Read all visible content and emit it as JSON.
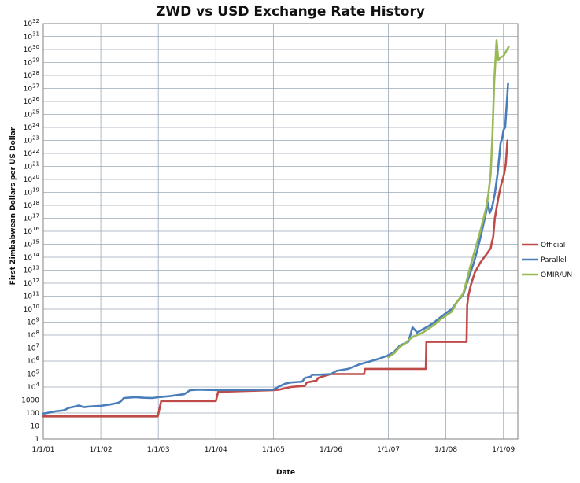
{
  "chart_data": {
    "type": "line",
    "title": "ZWD vs USD Exchange Rate History",
    "xlabel": "Date",
    "ylabel": "First Zimbabwean Dollars per US Dollar",
    "y_scale": "log",
    "y_ticks": [
      {
        "exp": 0,
        "label": "1"
      },
      {
        "exp": 1,
        "label": "10"
      },
      {
        "exp": 2,
        "label": "100"
      },
      {
        "exp": 3,
        "label": "1000"
      },
      {
        "exp": 4,
        "base": "10",
        "sup": "4"
      },
      {
        "exp": 5,
        "base": "10",
        "sup": "5"
      },
      {
        "exp": 6,
        "base": "10",
        "sup": "6"
      },
      {
        "exp": 7,
        "base": "10",
        "sup": "7"
      },
      {
        "exp": 8,
        "base": "10",
        "sup": "8"
      },
      {
        "exp": 9,
        "base": "10",
        "sup": "9"
      },
      {
        "exp": 10,
        "base": "10",
        "sup": "10"
      },
      {
        "exp": 11,
        "base": "10",
        "sup": "11"
      },
      {
        "exp": 12,
        "base": "10",
        "sup": "12"
      },
      {
        "exp": 13,
        "base": "10",
        "sup": "13"
      },
      {
        "exp": 14,
        "base": "10",
        "sup": "14"
      },
      {
        "exp": 15,
        "base": "10",
        "sup": "15"
      },
      {
        "exp": 16,
        "base": "10",
        "sup": "16"
      },
      {
        "exp": 17,
        "base": "10",
        "sup": "17"
      },
      {
        "exp": 18,
        "base": "10",
        "sup": "18"
      },
      {
        "exp": 19,
        "base": "10",
        "sup": "19"
      },
      {
        "exp": 20,
        "base": "10",
        "sup": "20"
      },
      {
        "exp": 21,
        "base": "10",
        "sup": "21"
      },
      {
        "exp": 22,
        "base": "10",
        "sup": "22"
      },
      {
        "exp": 23,
        "base": "10",
        "sup": "23"
      },
      {
        "exp": 24,
        "base": "10",
        "sup": "24"
      },
      {
        "exp": 25,
        "base": "10",
        "sup": "25"
      },
      {
        "exp": 26,
        "base": "10",
        "sup": "26"
      },
      {
        "exp": 27,
        "base": "10",
        "sup": "27"
      },
      {
        "exp": 28,
        "base": "10",
        "sup": "28"
      },
      {
        "exp": 29,
        "base": "10",
        "sup": "29"
      },
      {
        "exp": 30,
        "base": "10",
        "sup": "30"
      },
      {
        "exp": 31,
        "base": "10",
        "sup": "31"
      },
      {
        "exp": 32,
        "base": "10",
        "sup": "32"
      }
    ],
    "ylim_exp": [
      0,
      32
    ],
    "x_ticks": [
      {
        "value": 2001,
        "label": "1/1/01"
      },
      {
        "value": 2002,
        "label": "1/1/02"
      },
      {
        "value": 2003,
        "label": "1/1/03"
      },
      {
        "value": 2004,
        "label": "1/1/04"
      },
      {
        "value": 2005,
        "label": "1/1/05"
      },
      {
        "value": 2006,
        "label": "1/1/06"
      },
      {
        "value": 2007,
        "label": "1/1/07"
      },
      {
        "value": 2008,
        "label": "1/1/08"
      },
      {
        "value": 2009,
        "label": "1/1/09"
      }
    ],
    "xlim": [
      2001,
      2009.25
    ],
    "grid": true,
    "legend_position": "right",
    "series": [
      {
        "name": "Official",
        "color": "#be4b48",
        "points": [
          [
            2001.0,
            1.74
          ],
          [
            2002.0,
            1.74
          ],
          [
            2002.99,
            1.74
          ],
          [
            2003.05,
            2.92
          ],
          [
            2004.0,
            2.92
          ],
          [
            2004.04,
            3.63
          ],
          [
            2005.0,
            3.76
          ],
          [
            2005.1,
            3.8
          ],
          [
            2005.3,
            4.0
          ],
          [
            2005.55,
            4.1
          ],
          [
            2005.58,
            4.35
          ],
          [
            2005.75,
            4.5
          ],
          [
            2005.78,
            4.7
          ],
          [
            2005.92,
            4.9
          ],
          [
            2006.0,
            5.0
          ],
          [
            2006.58,
            5.0
          ],
          [
            2006.59,
            5.4
          ],
          [
            2007.0,
            5.4
          ],
          [
            2007.65,
            5.4
          ],
          [
            2007.66,
            7.48
          ],
          [
            2008.0,
            7.48
          ],
          [
            2008.36,
            7.48
          ],
          [
            2008.37,
            10.3
          ],
          [
            2008.39,
            11.0
          ],
          [
            2008.43,
            11.8
          ],
          [
            2008.5,
            12.8
          ],
          [
            2008.6,
            13.6
          ],
          [
            2008.7,
            14.2
          ],
          [
            2008.78,
            14.7
          ],
          [
            2008.8,
            15.2
          ],
          [
            2008.82,
            15.5
          ],
          [
            2008.85,
            17.0
          ],
          [
            2008.9,
            18.3
          ],
          [
            2008.93,
            19.0
          ],
          [
            2008.96,
            19.6
          ],
          [
            2009.0,
            20.2
          ],
          [
            2009.02,
            20.6
          ],
          [
            2009.04,
            21.2
          ],
          [
            2009.07,
            23.0
          ]
        ]
      },
      {
        "name": "Parallel",
        "color": "#4a7ebb",
        "points": [
          [
            2001.0,
            1.95
          ],
          [
            2001.12,
            2.05
          ],
          [
            2001.2,
            2.12
          ],
          [
            2001.35,
            2.2
          ],
          [
            2001.45,
            2.4
          ],
          [
            2001.55,
            2.5
          ],
          [
            2001.62,
            2.58
          ],
          [
            2001.7,
            2.45
          ],
          [
            2001.8,
            2.5
          ],
          [
            2002.0,
            2.55
          ],
          [
            2002.15,
            2.65
          ],
          [
            2002.3,
            2.78
          ],
          [
            2002.35,
            2.9
          ],
          [
            2002.4,
            3.15
          ],
          [
            2002.6,
            3.22
          ],
          [
            2002.75,
            3.17
          ],
          [
            2002.9,
            3.15
          ],
          [
            2003.0,
            3.22
          ],
          [
            2003.2,
            3.3
          ],
          [
            2003.45,
            3.45
          ],
          [
            2003.55,
            3.75
          ],
          [
            2003.7,
            3.8
          ],
          [
            2003.8,
            3.78
          ],
          [
            2004.0,
            3.77
          ],
          [
            2004.5,
            3.77
          ],
          [
            2005.0,
            3.8
          ],
          [
            2005.1,
            4.05
          ],
          [
            2005.2,
            4.25
          ],
          [
            2005.3,
            4.35
          ],
          [
            2005.5,
            4.42
          ],
          [
            2005.55,
            4.7
          ],
          [
            2005.65,
            4.8
          ],
          [
            2005.68,
            4.95
          ],
          [
            2005.8,
            4.95
          ],
          [
            2006.0,
            5.0
          ],
          [
            2006.1,
            5.25
          ],
          [
            2006.3,
            5.4
          ],
          [
            2006.5,
            5.75
          ],
          [
            2006.7,
            6.0
          ],
          [
            2006.85,
            6.2
          ],
          [
            2007.0,
            6.45
          ],
          [
            2007.1,
            6.7
          ],
          [
            2007.2,
            7.2
          ],
          [
            2007.35,
            7.5
          ],
          [
            2007.42,
            8.6
          ],
          [
            2007.5,
            8.2
          ],
          [
            2007.58,
            8.4
          ],
          [
            2007.7,
            8.7
          ],
          [
            2007.8,
            9.0
          ],
          [
            2007.9,
            9.35
          ],
          [
            2008.0,
            9.7
          ],
          [
            2008.1,
            10.0
          ],
          [
            2008.2,
            10.6
          ],
          [
            2008.3,
            11.1
          ],
          [
            2008.35,
            11.8
          ],
          [
            2008.4,
            12.5
          ],
          [
            2008.48,
            13.5
          ],
          [
            2008.55,
            14.6
          ],
          [
            2008.62,
            15.9
          ],
          [
            2008.7,
            17.5
          ],
          [
            2008.73,
            18.2
          ],
          [
            2008.76,
            17.4
          ],
          [
            2008.8,
            17.8
          ],
          [
            2008.85,
            18.9
          ],
          [
            2008.9,
            20.5
          ],
          [
            2008.95,
            22.8
          ],
          [
            2008.98,
            23.2
          ],
          [
            2009.0,
            23.8
          ],
          [
            2009.03,
            24.0
          ],
          [
            2009.06,
            26.0
          ],
          [
            2009.08,
            27.4
          ]
        ]
      },
      {
        "name": "OMIR/UN",
        "color": "#98b954",
        "points": [
          [
            2007.0,
            6.3
          ],
          [
            2007.1,
            6.6
          ],
          [
            2007.2,
            7.1
          ],
          [
            2007.3,
            7.4
          ],
          [
            2007.4,
            7.8
          ],
          [
            2007.5,
            8.0
          ],
          [
            2007.6,
            8.2
          ],
          [
            2007.7,
            8.5
          ],
          [
            2007.8,
            8.8
          ],
          [
            2007.9,
            9.2
          ],
          [
            2008.0,
            9.5
          ],
          [
            2008.1,
            9.8
          ],
          [
            2008.2,
            10.6
          ],
          [
            2008.3,
            11.2
          ],
          [
            2008.35,
            12.0
          ],
          [
            2008.42,
            13.2
          ],
          [
            2008.5,
            14.5
          ],
          [
            2008.58,
            15.7
          ],
          [
            2008.65,
            16.9
          ],
          [
            2008.7,
            17.8
          ],
          [
            2008.74,
            18.9
          ],
          [
            2008.78,
            20.5
          ],
          [
            2008.81,
            23.5
          ],
          [
            2008.84,
            27.5
          ],
          [
            2008.88,
            30.7
          ],
          [
            2008.91,
            29.2
          ],
          [
            2008.95,
            29.4
          ],
          [
            2009.0,
            29.5
          ],
          [
            2009.05,
            29.9
          ],
          [
            2009.09,
            30.2
          ]
        ]
      }
    ]
  }
}
